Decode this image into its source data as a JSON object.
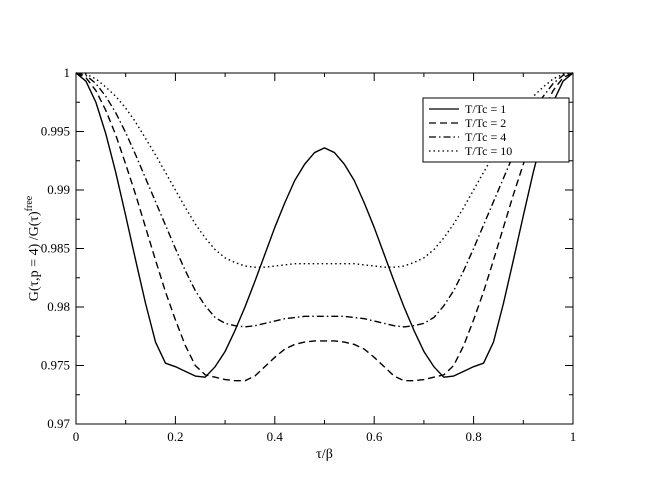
{
  "chart_data": {
    "type": "line",
    "title": "",
    "xlabel": "τ/β",
    "ylabel": "G(τ,p = 4)  /G(τ)",
    "ylabel_superscript": "free",
    "xlim": [
      0,
      1
    ],
    "ylim": [
      0.97,
      1
    ],
    "xticks": [
      0,
      0.2,
      0.4,
      0.6,
      0.8,
      1
    ],
    "xtick_labels": [
      "0",
      "0.2",
      "0.4",
      "0.6",
      "0.8",
      "1"
    ],
    "yticks": [
      0.97,
      0.975,
      0.98,
      0.985,
      0.99,
      0.995,
      1
    ],
    "ytick_labels": [
      "0.97",
      "0.975",
      "0.98",
      "0.985",
      "0.99",
      "0.995",
      "1"
    ],
    "grid": false,
    "legend_position": "top-right",
    "series": [
      {
        "name": "T/Tc = 1",
        "dash": "solid",
        "x": [
          0,
          0.02,
          0.04,
          0.06,
          0.08,
          0.1,
          0.12,
          0.14,
          0.16,
          0.18,
          0.2,
          0.22,
          0.24,
          0.26,
          0.28,
          0.3,
          0.32,
          0.34,
          0.36,
          0.38,
          0.4,
          0.42,
          0.44,
          0.46,
          0.48,
          0.5,
          0.52,
          0.54,
          0.56,
          0.58,
          0.6,
          0.62,
          0.64,
          0.66,
          0.68,
          0.7,
          0.72,
          0.74,
          0.76,
          0.78,
          0.8,
          0.82,
          0.84,
          0.86,
          0.88,
          0.9,
          0.92,
          0.94,
          0.96,
          0.98,
          1
        ],
        "y": [
          1,
          0.9993,
          0.9975,
          0.9948,
          0.9915,
          0.9878,
          0.984,
          0.9803,
          0.977,
          0.9752,
          0.9749,
          0.9745,
          0.9741,
          0.974,
          0.9749,
          0.9762,
          0.978,
          0.98,
          0.9822,
          0.9845,
          0.9868,
          0.9889,
          0.9908,
          0.9922,
          0.9932,
          0.9936,
          0.9932,
          0.9922,
          0.9908,
          0.9889,
          0.9868,
          0.9845,
          0.9822,
          0.98,
          0.978,
          0.9762,
          0.9749,
          0.974,
          0.9741,
          0.9745,
          0.9749,
          0.9752,
          0.977,
          0.9803,
          0.984,
          0.9878,
          0.9915,
          0.9948,
          0.9975,
          0.9993,
          1
        ]
      },
      {
        "name": "T/Tc = 2",
        "dash": "dashed",
        "x": [
          0,
          0.02,
          0.04,
          0.06,
          0.08,
          0.1,
          0.12,
          0.14,
          0.16,
          0.18,
          0.2,
          0.22,
          0.24,
          0.26,
          0.28,
          0.3,
          0.32,
          0.34,
          0.36,
          0.38,
          0.4,
          0.42,
          0.44,
          0.46,
          0.48,
          0.5,
          0.52,
          0.54,
          0.56,
          0.58,
          0.6,
          0.62,
          0.64,
          0.66,
          0.68,
          0.7,
          0.72,
          0.74,
          0.76,
          0.78,
          0.8,
          0.82,
          0.84,
          0.86,
          0.88,
          0.9,
          0.92,
          0.94,
          0.96,
          0.98,
          1
        ],
        "y": [
          1,
          0.9996,
          0.9985,
          0.9968,
          0.9947,
          0.9922,
          0.9896,
          0.9868,
          0.984,
          0.9813,
          0.9789,
          0.9767,
          0.975,
          0.9742,
          0.974,
          0.9738,
          0.9737,
          0.9737,
          0.9741,
          0.9749,
          0.9757,
          0.9764,
          0.9768,
          0.977,
          0.9771,
          0.9771,
          0.9771,
          0.977,
          0.9768,
          0.9764,
          0.9757,
          0.9749,
          0.9741,
          0.9737,
          0.9737,
          0.9738,
          0.974,
          0.9742,
          0.975,
          0.9767,
          0.9789,
          0.9813,
          0.984,
          0.9868,
          0.9896,
          0.9922,
          0.9947,
          0.9968,
          0.9985,
          0.9996,
          1
        ]
      },
      {
        "name": "T/Tc = 4",
        "dash": "dashdot",
        "x": [
          0,
          0.02,
          0.04,
          0.06,
          0.08,
          0.1,
          0.12,
          0.14,
          0.16,
          0.18,
          0.2,
          0.22,
          0.24,
          0.26,
          0.28,
          0.3,
          0.32,
          0.34,
          0.36,
          0.38,
          0.4,
          0.42,
          0.44,
          0.46,
          0.48,
          0.5,
          0.52,
          0.54,
          0.56,
          0.58,
          0.6,
          0.62,
          0.64,
          0.66,
          0.68,
          0.7,
          0.72,
          0.74,
          0.76,
          0.78,
          0.8,
          0.82,
          0.84,
          0.86,
          0.88,
          0.9,
          0.92,
          0.94,
          0.96,
          0.98,
          1
        ],
        "y": [
          1,
          0.9998,
          0.9991,
          0.998,
          0.9966,
          0.9949,
          0.993,
          0.991,
          0.989,
          0.987,
          0.985,
          0.9831,
          0.9814,
          0.9801,
          0.9791,
          0.9786,
          0.9784,
          0.9783,
          0.9784,
          0.9786,
          0.9788,
          0.979,
          0.9791,
          0.9792,
          0.9792,
          0.9792,
          0.9792,
          0.9792,
          0.9791,
          0.979,
          0.9788,
          0.9786,
          0.9784,
          0.9783,
          0.9784,
          0.9786,
          0.9791,
          0.9801,
          0.9814,
          0.9831,
          0.985,
          0.987,
          0.989,
          0.991,
          0.993,
          0.9949,
          0.9966,
          0.998,
          0.9991,
          0.9998,
          1
        ]
      },
      {
        "name": "T/Tc = 10",
        "dash": "dotted",
        "x": [
          0,
          0.02,
          0.04,
          0.06,
          0.08,
          0.1,
          0.12,
          0.14,
          0.16,
          0.18,
          0.2,
          0.22,
          0.24,
          0.26,
          0.28,
          0.3,
          0.32,
          0.34,
          0.36,
          0.38,
          0.4,
          0.42,
          0.44,
          0.46,
          0.48,
          0.5,
          0.52,
          0.54,
          0.56,
          0.58,
          0.6,
          0.62,
          0.64,
          0.66,
          0.68,
          0.7,
          0.72,
          0.74,
          0.76,
          0.78,
          0.8,
          0.82,
          0.84,
          0.86,
          0.88,
          0.9,
          0.92,
          0.94,
          0.96,
          0.98,
          1
        ],
        "y": [
          1,
          0.9999,
          0.9995,
          0.9988,
          0.998,
          0.997,
          0.9958,
          0.9944,
          0.993,
          0.9915,
          0.99,
          0.9885,
          0.9871,
          0.9859,
          0.9849,
          0.9842,
          0.9838,
          0.9835,
          0.9834,
          0.9834,
          0.9835,
          0.9836,
          0.9837,
          0.9837,
          0.9837,
          0.9837,
          0.9837,
          0.9837,
          0.9837,
          0.9836,
          0.9835,
          0.9834,
          0.9834,
          0.9835,
          0.9838,
          0.9842,
          0.9849,
          0.9859,
          0.9871,
          0.9885,
          0.99,
          0.9915,
          0.993,
          0.9944,
          0.9958,
          0.997,
          0.998,
          0.9988,
          0.9995,
          0.9999,
          1
        ]
      }
    ]
  }
}
